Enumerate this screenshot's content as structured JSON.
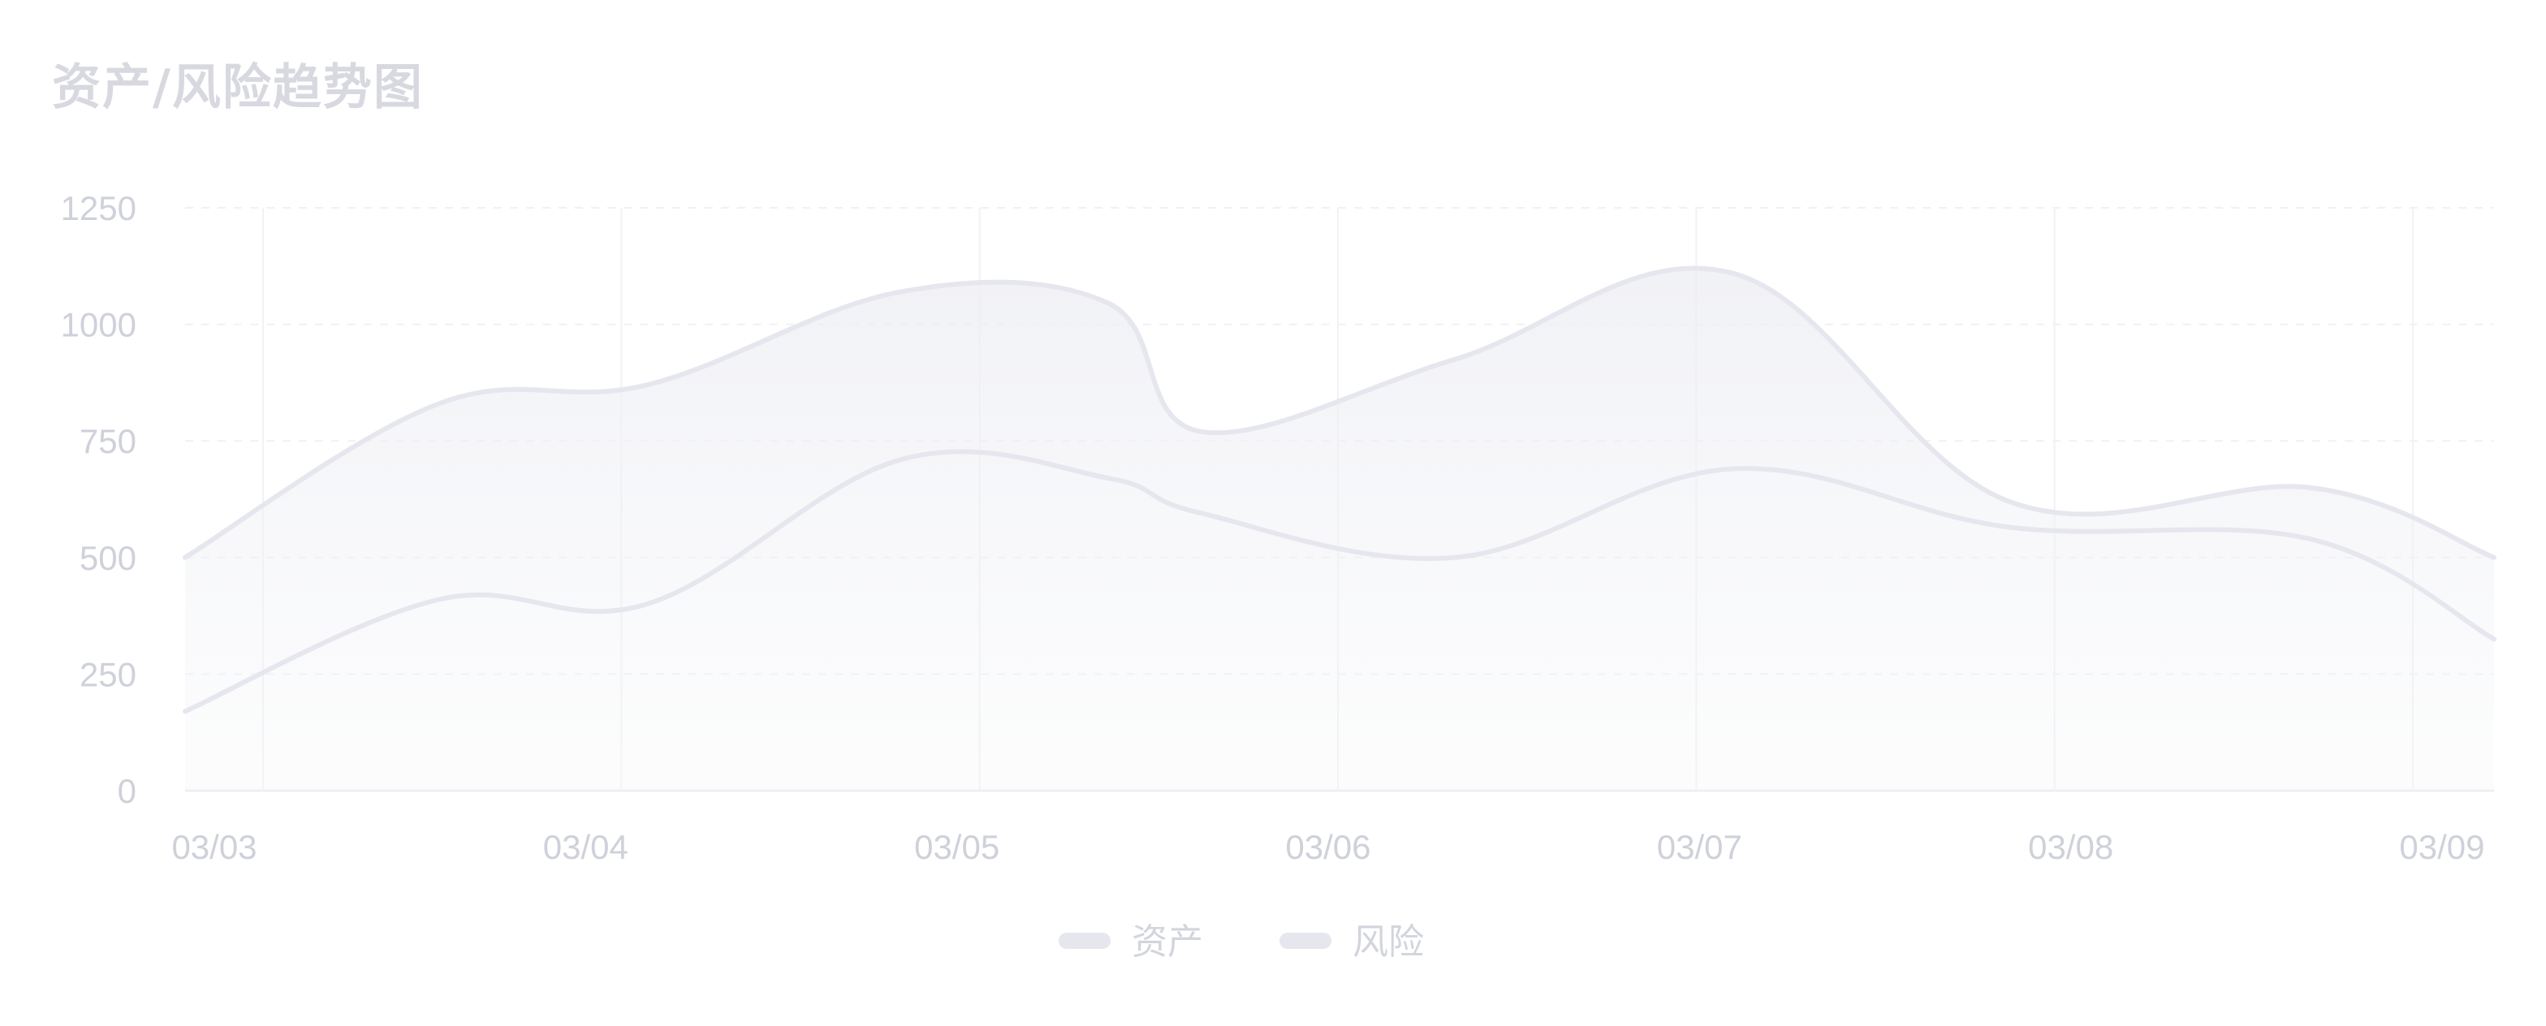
{
  "chart_data": {
    "type": "line",
    "title": "资产/风险趋势图",
    "categories": [
      "03/03",
      "03/04",
      "03/05",
      "03/06",
      "03/07",
      "03/08",
      "03/09"
    ],
    "x_positions": [
      "03/03",
      "03/03",
      "03/04",
      "03/04",
      "03/05",
      "03/05",
      "03/06",
      "03/06",
      "03/07",
      "03/07",
      "03/08",
      "03/08",
      "03/09"
    ],
    "series": [
      {
        "name": "资产",
        "values": [
          500,
          830,
          870,
          1070,
          770,
          1045,
          925,
          1110,
          620,
          650,
          500
        ],
        "x": [
          0,
          0.55,
          1.0,
          1.55,
          2.2,
          2.0,
          2.75,
          3.35,
          3.95,
          4.6,
          5.0
        ],
        "color": "#e6e7ee",
        "area": true
      },
      {
        "name": "风险",
        "values": [
          170,
          410,
          400,
          710,
          595,
          670,
          500,
          690,
          565,
          540,
          325
        ],
        "x": [
          0,
          0.55,
          1.0,
          1.55,
          2.2,
          2.0,
          2.75,
          3.35,
          3.95,
          4.6,
          5.0
        ],
        "color": "#e6e7ee",
        "area": false
      }
    ],
    "ylim": [
      0,
      1250
    ],
    "yticks": [
      0,
      250,
      500,
      750,
      1000,
      1250
    ],
    "grid": true,
    "legend": "bottom-center"
  },
  "legend": {
    "items": [
      {
        "label": "资产"
      },
      {
        "label": "风险"
      }
    ]
  }
}
